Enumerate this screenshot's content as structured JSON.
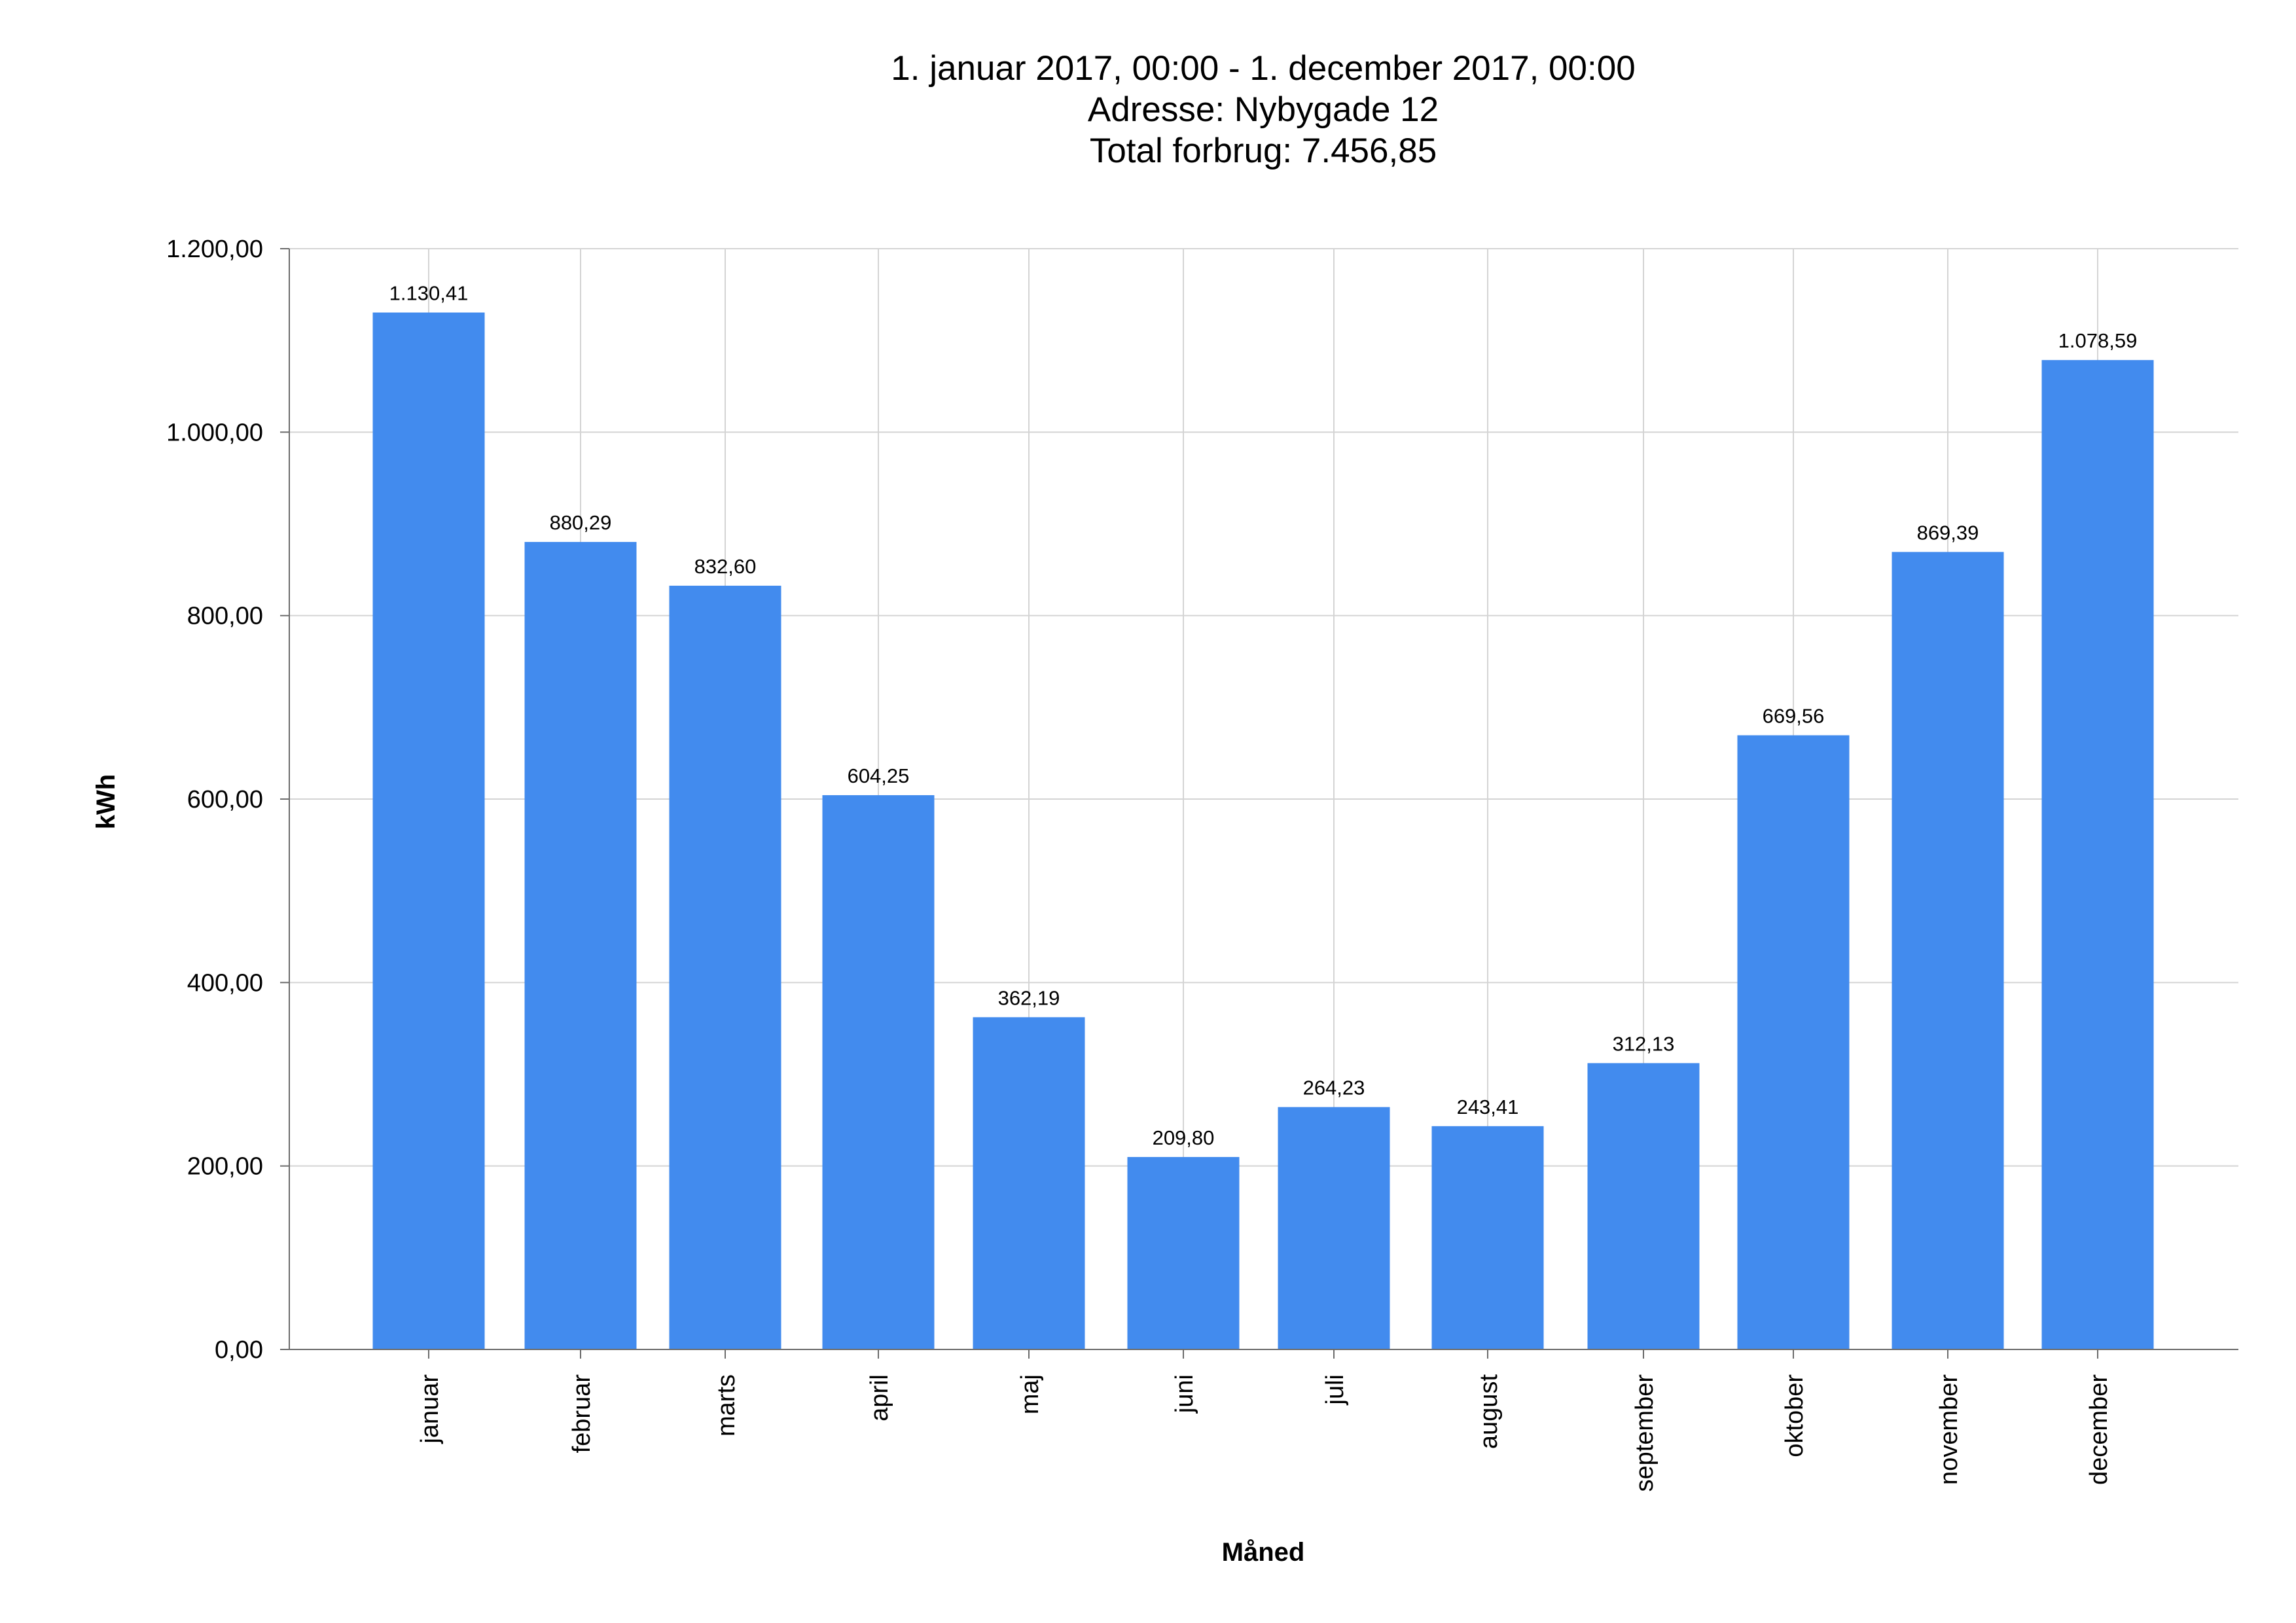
{
  "chart_data": {
    "type": "bar",
    "title_lines": [
      "1. januar 2017, 00:00 - 1. december 2017, 00:00",
      "Adresse: Nybygade 12",
      "Total forbrug: 7.456,85"
    ],
    "xlabel": "Måned",
    "ylabel": "kWh",
    "categories": [
      "januar",
      "februar",
      "marts",
      "april",
      "maj",
      "juni",
      "juli",
      "august",
      "september",
      "oktober",
      "november",
      "december"
    ],
    "values": [
      1130.41,
      880.29,
      832.6,
      604.25,
      362.19,
      209.8,
      264.23,
      243.41,
      312.13,
      669.56,
      869.39,
      1078.59
    ],
    "value_labels": [
      "1.130,41",
      "880,29",
      "832,60",
      "604,25",
      "362,19",
      "209,80",
      "264,23",
      "243,41",
      "312,13",
      "669,56",
      "869,39",
      "1.078,59"
    ],
    "ylim": [
      0,
      1200
    ],
    "yticks": [
      0,
      200,
      400,
      600,
      800,
      1000,
      1200
    ],
    "ytick_labels": [
      "0,00",
      "200,00",
      "400,00",
      "600,00",
      "800,00",
      "1.000,00",
      "1.200,00"
    ],
    "grid": true,
    "legend": "none",
    "bar_color": "#428BEE"
  }
}
